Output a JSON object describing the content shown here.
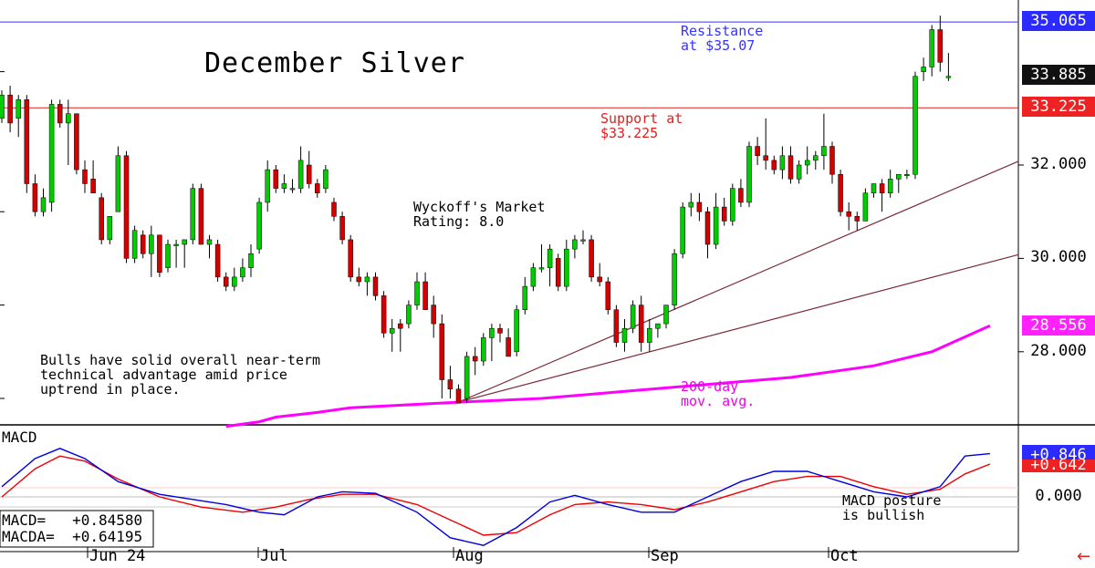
{
  "chart_data": {
    "type": "candlestick",
    "title": "December Silver",
    "price_axis": {
      "ticks": [
        "35.065",
        "33.885",
        "33.225",
        "32.000",
        "30.000",
        "28.556",
        "28.000"
      ],
      "ylim": [
        26.2,
        35.6
      ]
    },
    "x_months": [
      "Jun 24",
      "Jul",
      "Aug",
      "Sep",
      "Oct"
    ],
    "annotations": {
      "resistance": "Resistance\nat $35.07",
      "support": "Support at\n$33.225",
      "rating": "Wyckoff's Market\nRating: 8.0",
      "bulls": "Bulls have solid overall near-term\ntechnical advantage amid price\nuptrend in place.",
      "ma200": "200-day\nmov. avg.",
      "macd_posture": "MACD posture\nis bullish"
    },
    "levels": {
      "resistance": 35.065,
      "support": 33.225,
      "last": 33.885,
      "ma200_last": 28.556
    },
    "colors": {
      "up": "#00cc00",
      "down": "#d40000",
      "ma": "#ff00ff",
      "resistance": "#3333ff",
      "support": "#dd2222",
      "macd": "#0000dd",
      "signal": "#ee0000",
      "trend": "#7a2a3a"
    },
    "candles": [
      [
        33.0,
        33.6,
        32.9,
        33.5
      ],
      [
        33.5,
        33.7,
        32.7,
        32.9
      ],
      [
        33.0,
        33.5,
        32.6,
        33.4
      ],
      [
        33.4,
        33.5,
        31.4,
        31.6
      ],
      [
        31.6,
        31.8,
        30.9,
        31.0
      ],
      [
        31.0,
        31.5,
        30.9,
        31.3
      ],
      [
        31.2,
        33.4,
        31.0,
        33.3
      ],
      [
        33.3,
        33.4,
        32.8,
        32.9
      ],
      [
        32.9,
        33.4,
        32.0,
        33.1
      ],
      [
        33.1,
        33.1,
        31.8,
        31.9
      ],
      [
        31.9,
        32.1,
        31.4,
        31.6
      ],
      [
        31.7,
        32.1,
        31.4,
        31.4
      ],
      [
        31.3,
        31.4,
        30.3,
        30.4
      ],
      [
        30.4,
        30.9,
        30.3,
        30.9
      ],
      [
        31.0,
        32.4,
        31.0,
        32.2
      ],
      [
        32.2,
        32.3,
        29.9,
        30.0
      ],
      [
        30.0,
        30.7,
        29.9,
        30.6
      ],
      [
        30.5,
        30.6,
        30.0,
        30.1
      ],
      [
        30.1,
        30.7,
        29.6,
        30.5
      ],
      [
        30.5,
        30.5,
        29.6,
        29.7
      ],
      [
        29.8,
        30.4,
        29.7,
        30.3
      ],
      [
        30.3,
        30.4,
        29.8,
        30.3
      ],
      [
        30.3,
        30.4,
        29.8,
        30.4
      ],
      [
        30.4,
        31.6,
        30.3,
        31.5
      ],
      [
        31.5,
        31.6,
        30.3,
        30.3
      ],
      [
        30.3,
        30.5,
        30.0,
        30.4
      ],
      [
        30.3,
        30.4,
        29.5,
        29.6
      ],
      [
        29.6,
        29.7,
        29.3,
        29.4
      ],
      [
        29.4,
        29.8,
        29.3,
        29.6
      ],
      [
        29.6,
        30.0,
        29.5,
        29.8
      ],
      [
        29.8,
        30.3,
        29.6,
        30.1
      ],
      [
        30.2,
        31.3,
        30.1,
        31.2
      ],
      [
        31.2,
        32.1,
        31.0,
        31.9
      ],
      [
        31.9,
        32.0,
        31.4,
        31.5
      ],
      [
        31.5,
        31.8,
        31.4,
        31.6
      ],
      [
        31.5,
        31.7,
        31.4,
        31.5
      ],
      [
        31.5,
        32.4,
        31.4,
        32.1
      ],
      [
        32.0,
        32.3,
        31.5,
        31.6
      ],
      [
        31.6,
        31.7,
        31.3,
        31.4
      ],
      [
        31.5,
        32.0,
        31.4,
        31.9
      ],
      [
        31.2,
        31.3,
        30.8,
        30.9
      ],
      [
        30.9,
        31.0,
        30.3,
        30.4
      ],
      [
        30.4,
        30.5,
        29.5,
        29.6
      ],
      [
        29.6,
        29.8,
        29.4,
        29.5
      ],
      [
        29.5,
        29.7,
        29.2,
        29.6
      ],
      [
        29.6,
        29.7,
        29.1,
        29.2
      ],
      [
        29.2,
        29.3,
        28.3,
        28.4
      ],
      [
        28.4,
        28.7,
        28.0,
        28.5
      ],
      [
        28.6,
        28.7,
        28.0,
        28.5
      ],
      [
        28.6,
        29.1,
        28.5,
        29.0
      ],
      [
        29.0,
        29.7,
        28.9,
        29.5
      ],
      [
        29.5,
        29.7,
        28.9,
        28.9
      ],
      [
        29.0,
        29.2,
        28.3,
        28.6
      ],
      [
        28.6,
        28.8,
        27.0,
        27.4
      ],
      [
        27.4,
        27.7,
        27.0,
        27.2
      ],
      [
        27.2,
        27.3,
        26.9,
        26.9
      ],
      [
        27.0,
        28.0,
        26.9,
        27.9
      ],
      [
        27.9,
        28.1,
        27.5,
        27.8
      ],
      [
        27.8,
        28.4,
        27.7,
        28.3
      ],
      [
        28.3,
        28.6,
        27.8,
        28.5
      ],
      [
        28.5,
        28.6,
        28.2,
        28.4
      ],
      [
        28.3,
        28.5,
        27.9,
        27.9
      ],
      [
        28.0,
        29.0,
        27.9,
        28.9
      ],
      [
        28.9,
        29.6,
        28.8,
        29.4
      ],
      [
        29.4,
        29.9,
        29.3,
        29.8
      ],
      [
        29.8,
        30.3,
        29.7,
        29.8
      ],
      [
        29.8,
        30.3,
        29.4,
        30.2
      ],
      [
        30.0,
        30.1,
        29.3,
        29.4
      ],
      [
        29.4,
        30.4,
        29.3,
        30.2
      ],
      [
        30.2,
        30.5,
        30.0,
        30.4
      ],
      [
        30.4,
        30.6,
        30.3,
        30.4
      ],
      [
        30.4,
        30.5,
        29.5,
        29.6
      ],
      [
        29.6,
        29.9,
        29.4,
        29.5
      ],
      [
        29.5,
        29.6,
        28.8,
        28.9
      ],
      [
        28.9,
        29.0,
        28.1,
        28.2
      ],
      [
        28.2,
        28.7,
        28.0,
        28.5
      ],
      [
        28.5,
        29.1,
        28.4,
        29.0
      ],
      [
        29.0,
        29.2,
        28.0,
        28.2
      ],
      [
        28.2,
        28.7,
        28.0,
        28.5
      ],
      [
        28.5,
        28.6,
        28.3,
        28.6
      ],
      [
        28.6,
        29.0,
        28.5,
        29.0
      ],
      [
        29.0,
        30.2,
        28.9,
        30.1
      ],
      [
        30.1,
        31.2,
        30.0,
        31.1
      ],
      [
        31.1,
        31.4,
        30.9,
        31.2
      ],
      [
        31.2,
        31.4,
        30.8,
        31.0
      ],
      [
        31.0,
        31.1,
        30.0,
        30.3
      ],
      [
        30.3,
        31.4,
        30.2,
        31.1
      ],
      [
        31.1,
        31.3,
        30.7,
        30.8
      ],
      [
        30.8,
        31.6,
        30.7,
        31.5
      ],
      [
        31.5,
        31.7,
        31.1,
        31.2
      ],
      [
        31.2,
        32.5,
        31.1,
        32.4
      ],
      [
        32.4,
        32.6,
        32.0,
        32.2
      ],
      [
        32.2,
        33.0,
        31.9,
        32.1
      ],
      [
        32.1,
        32.2,
        31.8,
        31.9
      ],
      [
        31.9,
        32.4,
        31.7,
        32.2
      ],
      [
        32.2,
        32.4,
        31.6,
        31.7
      ],
      [
        31.7,
        32.1,
        31.6,
        32.0
      ],
      [
        32.0,
        32.4,
        31.8,
        32.1
      ],
      [
        32.1,
        32.3,
        31.9,
        32.2
      ],
      [
        32.2,
        33.1,
        31.9,
        32.4
      ],
      [
        32.4,
        32.5,
        31.6,
        31.8
      ],
      [
        31.8,
        31.9,
        30.9,
        31.0
      ],
      [
        31.0,
        31.2,
        30.6,
        30.9
      ],
      [
        30.9,
        31.0,
        30.6,
        30.8
      ],
      [
        30.8,
        31.5,
        30.8,
        31.4
      ],
      [
        31.4,
        31.6,
        31.3,
        31.6
      ],
      [
        31.6,
        31.7,
        31.0,
        31.4
      ],
      [
        31.4,
        31.9,
        31.3,
        31.7
      ],
      [
        31.7,
        31.8,
        31.4,
        31.8
      ],
      [
        31.8,
        31.9,
        31.7,
        31.8
      ],
      [
        31.8,
        34.0,
        31.7,
        33.9
      ],
      [
        34.0,
        34.3,
        33.8,
        34.1
      ],
      [
        34.1,
        35.0,
        33.9,
        34.9
      ],
      [
        34.9,
        35.2,
        34.0,
        34.2
      ],
      [
        33.9,
        34.4,
        33.8,
        33.9
      ]
    ],
    "trendlines": [
      {
        "from": [
          55,
          26.92
        ],
        "to": [
          "end",
          32.08
        ]
      },
      {
        "from": [
          55,
          26.92
        ],
        "to": [
          "end",
          30.08
        ]
      }
    ],
    "ma200": [
      [
        27,
        26.4
      ],
      [
        31,
        26.5
      ],
      [
        33,
        26.6
      ],
      [
        38,
        26.7
      ],
      [
        42,
        26.8
      ],
      [
        55,
        26.92
      ],
      [
        65,
        27.0
      ],
      [
        75,
        27.15
      ],
      [
        85,
        27.3
      ],
      [
        95,
        27.45
      ],
      [
        105,
        27.7
      ],
      [
        112,
        28.0
      ],
      [
        119,
        28.556
      ]
    ],
    "macd_panel": {
      "label": "MACD",
      "ticks": [
        "+0.846",
        "+0.642",
        "0.000"
      ],
      "ylim": [
        -1.1,
        1.25
      ],
      "readout": [
        "MACD=   +0.84580",
        "MACDA=  +0.64195"
      ],
      "macd": [
        [
          0,
          0.2
        ],
        [
          4,
          0.75
        ],
        [
          7,
          0.95
        ],
        [
          10,
          0.75
        ],
        [
          14,
          0.3
        ],
        [
          19,
          0.05
        ],
        [
          23,
          -0.05
        ],
        [
          27,
          -0.15
        ],
        [
          31,
          -0.3
        ],
        [
          34,
          -0.35
        ],
        [
          38,
          0.0
        ],
        [
          41,
          0.1
        ],
        [
          45,
          0.07
        ],
        [
          50,
          -0.3
        ],
        [
          54,
          -0.8
        ],
        [
          58,
          -0.95
        ],
        [
          62,
          -0.6
        ],
        [
          66,
          -0.1
        ],
        [
          69,
          0.03
        ],
        [
          73,
          -0.15
        ],
        [
          77,
          -0.3
        ],
        [
          81,
          -0.3
        ],
        [
          85,
          0.0
        ],
        [
          89,
          0.3
        ],
        [
          93,
          0.5
        ],
        [
          97,
          0.5
        ],
        [
          101,
          0.3
        ],
        [
          105,
          0.1
        ],
        [
          109,
          0.0
        ],
        [
          113,
          0.2
        ],
        [
          116,
          0.8
        ],
        [
          119,
          0.846
        ]
      ],
      "signal": [
        [
          0,
          0.0
        ],
        [
          4,
          0.55
        ],
        [
          7,
          0.8
        ],
        [
          10,
          0.7
        ],
        [
          14,
          0.35
        ],
        [
          19,
          0.0
        ],
        [
          24,
          -0.2
        ],
        [
          29,
          -0.3
        ],
        [
          33,
          -0.2
        ],
        [
          37,
          -0.05
        ],
        [
          41,
          0.05
        ],
        [
          45,
          0.05
        ],
        [
          50,
          -0.15
        ],
        [
          54,
          -0.45
        ],
        [
          58,
          -0.75
        ],
        [
          62,
          -0.7
        ],
        [
          66,
          -0.35
        ],
        [
          69,
          -0.15
        ],
        [
          73,
          -0.1
        ],
        [
          77,
          -0.15
        ],
        [
          81,
          -0.25
        ],
        [
          85,
          -0.1
        ],
        [
          89,
          0.1
        ],
        [
          93,
          0.3
        ],
        [
          97,
          0.4
        ],
        [
          101,
          0.4
        ],
        [
          105,
          0.2
        ],
        [
          109,
          0.05
        ],
        [
          113,
          0.15
        ],
        [
          116,
          0.45
        ],
        [
          119,
          0.642
        ]
      ]
    }
  }
}
